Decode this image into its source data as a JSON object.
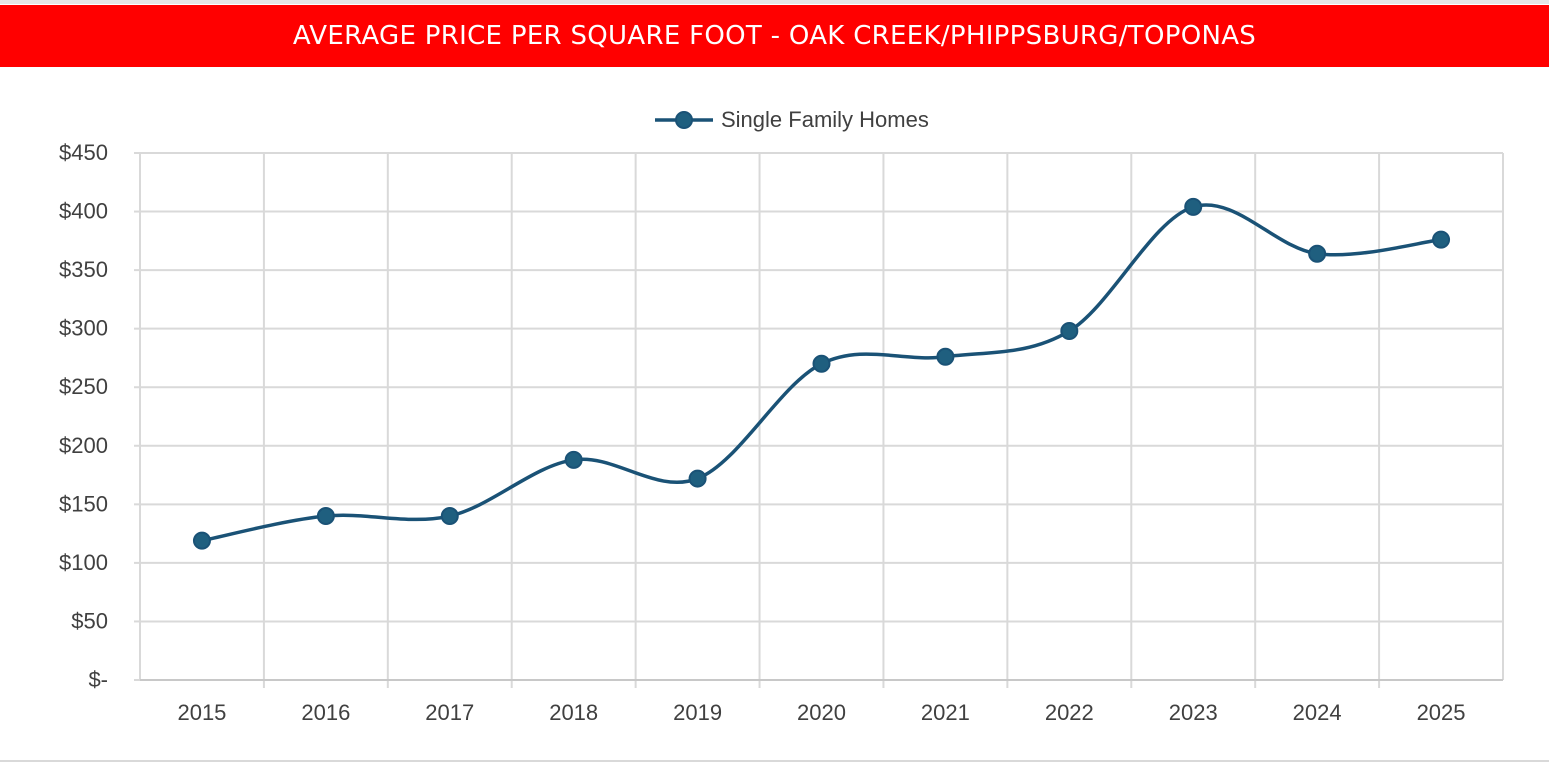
{
  "header": {
    "title": "AVERAGE PRICE PER SQUARE FOOT - OAK CREEK/PHIPPSBURG/TOPONAS"
  },
  "colors": {
    "banner": "#ff0000",
    "series_line": "#1a5276",
    "series_marker": "#1f5f7f",
    "grid": "#d9d9d9",
    "text": "#404040"
  },
  "chart_data": {
    "type": "line",
    "title": "AVERAGE PRICE PER SQUARE FOOT - OAK CREEK/PHIPPSBURG/TOPONAS",
    "xlabel": "",
    "ylabel": "",
    "categories": [
      "2015",
      "2016",
      "2017",
      "2018",
      "2019",
      "2020",
      "2021",
      "2022",
      "2023",
      "2024",
      "2025"
    ],
    "series": [
      {
        "name": "Single Family Homes",
        "values": [
          119,
          140,
          140,
          188,
          172,
          270,
          276,
          298,
          404,
          364,
          376
        ]
      }
    ],
    "ylim": [
      0,
      450
    ],
    "yticks": [
      0,
      50,
      100,
      150,
      200,
      250,
      300,
      350,
      400,
      450
    ],
    "ytick_labels": [
      "$-",
      "$50",
      "$100",
      "$150",
      "$200",
      "$250",
      "$300",
      "$350",
      "$400",
      "$450"
    ],
    "grid": true,
    "smooth": true,
    "legend_position": "top-center"
  }
}
